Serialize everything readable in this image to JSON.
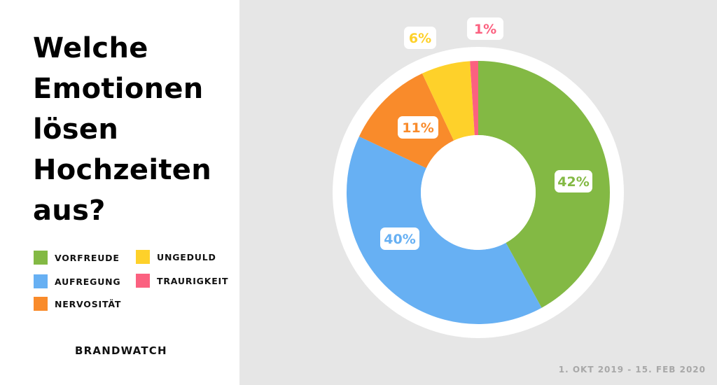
{
  "title_lines": [
    "Welche",
    "Emotionen",
    "lösen",
    "Hochzeiten",
    "aus?"
  ],
  "brand": "BRANDWATCH",
  "date_range": "1. OKT 2019 - 15. FEB 2020",
  "colors": {
    "panel_bg": "#e6e6e6",
    "ring": "#ffffff"
  },
  "chart_data": {
    "type": "pie",
    "variant": "donut",
    "legend_placement": "left",
    "categories": [
      "VORFREUDE",
      "AUFREGUNG",
      "NERVOSITÄT",
      "UNGEDULD",
      "TRAURIGKEIT"
    ],
    "values": [
      42,
      40,
      11,
      6,
      1
    ],
    "value_labels": [
      "42%",
      "40%",
      "11%",
      "6%",
      "1%"
    ],
    "colors": [
      "#83b944",
      "#67b0f3",
      "#f98b2b",
      "#fed12a",
      "#fb6180"
    ]
  }
}
